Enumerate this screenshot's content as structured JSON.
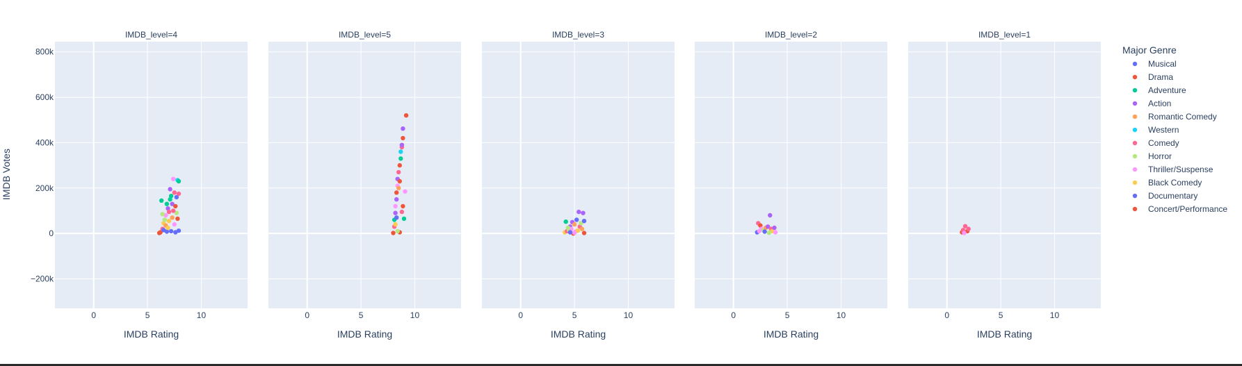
{
  "chart_data": {
    "type": "scatter",
    "facet_field": "IMDB_level",
    "xlabel": "IMDB Rating",
    "ylabel": "IMDB Votes",
    "xlim": [
      -3.6,
      14.3
    ],
    "ylim": [
      -330000,
      845000
    ],
    "xticks": [
      0,
      5,
      10
    ],
    "xtick_labels": [
      "0",
      "5",
      "10"
    ],
    "yticks": [
      -200000,
      0,
      200000,
      400000,
      600000,
      800000
    ],
    "ytick_labels": [
      "−200k",
      "0",
      "200k",
      "400k",
      "600k",
      "800k"
    ],
    "grid": true,
    "legend": {
      "title": "Major Genre",
      "placement": "right",
      "entries": [
        {
          "name": "Musical",
          "color": "#636efa"
        },
        {
          "name": "Drama",
          "color": "#ef553b"
        },
        {
          "name": "Adventure",
          "color": "#00cc96"
        },
        {
          "name": "Action",
          "color": "#ab63fa"
        },
        {
          "name": "Romantic Comedy",
          "color": "#ffa15a"
        },
        {
          "name": "Western",
          "color": "#19d3f3"
        },
        {
          "name": "Comedy",
          "color": "#ff6692"
        },
        {
          "name": "Horror",
          "color": "#b6e880"
        },
        {
          "name": "Thriller/Suspense",
          "color": "#ff97ff"
        },
        {
          "name": "Black Comedy",
          "color": "#fecb52"
        },
        {
          "name": "Documentary",
          "color": "#636efa"
        },
        {
          "name": "Concert/Performance",
          "color": "#ef553b"
        }
      ]
    },
    "facets": [
      {
        "title": "IMDB_level=4",
        "points": [
          {
            "x": 6.2,
            "y": 5000,
            "g": "Drama"
          },
          {
            "x": 6.4,
            "y": 20000,
            "g": "Comedy"
          },
          {
            "x": 6.5,
            "y": 45000,
            "g": "Black Comedy"
          },
          {
            "x": 6.6,
            "y": 60000,
            "g": "Horror"
          },
          {
            "x": 6.7,
            "y": 80000,
            "g": "Thriller/Suspense"
          },
          {
            "x": 6.8,
            "y": 130000,
            "g": "Adventure"
          },
          {
            "x": 6.3,
            "y": 145000,
            "g": "Adventure"
          },
          {
            "x": 6.9,
            "y": 110000,
            "g": "Action"
          },
          {
            "x": 7.0,
            "y": 95000,
            "g": "Comedy"
          },
          {
            "x": 7.1,
            "y": 150000,
            "g": "Adventure"
          },
          {
            "x": 7.2,
            "y": 165000,
            "g": "Adventure"
          },
          {
            "x": 7.3,
            "y": 130000,
            "g": "Action"
          },
          {
            "x": 7.4,
            "y": 240000,
            "g": "Thriller/Suspense"
          },
          {
            "x": 7.5,
            "y": 180000,
            "g": "Comedy"
          },
          {
            "x": 7.6,
            "y": 120000,
            "g": "Drama"
          },
          {
            "x": 7.7,
            "y": 160000,
            "g": "Musical"
          },
          {
            "x": 7.8,
            "y": 235000,
            "g": "Western"
          },
          {
            "x": 7.9,
            "y": 230000,
            "g": "Adventure"
          },
          {
            "x": 7.9,
            "y": 175000,
            "g": "Comedy"
          },
          {
            "x": 7.1,
            "y": 195000,
            "g": "Action"
          },
          {
            "x": 6.5,
            "y": 15000,
            "g": "Documentary"
          },
          {
            "x": 6.8,
            "y": 8000,
            "g": "Musical"
          },
          {
            "x": 7.2,
            "y": 10000,
            "g": "Documentary"
          },
          {
            "x": 7.6,
            "y": 5000,
            "g": "Musical"
          },
          {
            "x": 7.9,
            "y": 12000,
            "g": "Documentary"
          },
          {
            "x": 6.7,
            "y": 35000,
            "g": "Romantic Comedy"
          },
          {
            "x": 7.0,
            "y": 55000,
            "g": "Black Comedy"
          },
          {
            "x": 7.3,
            "y": 70000,
            "g": "Romantic Comedy"
          },
          {
            "x": 7.7,
            "y": 90000,
            "g": "Horror"
          },
          {
            "x": 6.4,
            "y": 85000,
            "g": "Horror"
          },
          {
            "x": 7.5,
            "y": 40000,
            "g": "Thriller/Suspense"
          },
          {
            "x": 7.8,
            "y": 65000,
            "g": "Drama"
          },
          {
            "x": 6.9,
            "y": 25000,
            "g": "Black Comedy"
          },
          {
            "x": 7.4,
            "y": 100000,
            "g": "Comedy"
          },
          {
            "x": 6.1,
            "y": 2000,
            "g": "Drama"
          }
        ]
      },
      {
        "title": "IMDB_level=5",
        "points": [
          {
            "x": 8.0,
            "y": 2000,
            "g": "Drama"
          },
          {
            "x": 8.1,
            "y": 30000,
            "g": "Comedy"
          },
          {
            "x": 8.1,
            "y": 60000,
            "g": "Adventure"
          },
          {
            "x": 8.2,
            "y": 90000,
            "g": "Action"
          },
          {
            "x": 8.2,
            "y": 120000,
            "g": "Thriller/Suspense"
          },
          {
            "x": 8.3,
            "y": 150000,
            "g": "Action"
          },
          {
            "x": 8.3,
            "y": 180000,
            "g": "Drama"
          },
          {
            "x": 8.4,
            "y": 210000,
            "g": "Thriller/Suspense"
          },
          {
            "x": 8.4,
            "y": 240000,
            "g": "Action"
          },
          {
            "x": 8.5,
            "y": 270000,
            "g": "Comedy"
          },
          {
            "x": 8.5,
            "y": 200000,
            "g": "Romantic Comedy"
          },
          {
            "x": 8.6,
            "y": 230000,
            "g": "Drama"
          },
          {
            "x": 8.6,
            "y": 300000,
            "g": "Drama"
          },
          {
            "x": 8.7,
            "y": 330000,
            "g": "Adventure"
          },
          {
            "x": 8.7,
            "y": 360000,
            "g": "Western"
          },
          {
            "x": 8.8,
            "y": 380000,
            "g": "Comedy"
          },
          {
            "x": 8.9,
            "y": 420000,
            "g": "Drama"
          },
          {
            "x": 8.9,
            "y": 462000,
            "g": "Action"
          },
          {
            "x": 9.2,
            "y": 520000,
            "g": "Drama"
          },
          {
            "x": 8.8,
            "y": 390000,
            "g": "Action"
          },
          {
            "x": 8.6,
            "y": 5000,
            "g": "Drama"
          },
          {
            "x": 8.4,
            "y": 10000,
            "g": "Horror"
          },
          {
            "x": 8.2,
            "y": 40000,
            "g": "Black Comedy"
          },
          {
            "x": 9.0,
            "y": 65000,
            "g": "Adventure"
          },
          {
            "x": 9.1,
            "y": 185000,
            "g": "Thriller/Suspense"
          },
          {
            "x": 8.9,
            "y": 120000,
            "g": "Drama"
          },
          {
            "x": 8.8,
            "y": 95000,
            "g": "Comedy"
          },
          {
            "x": 8.3,
            "y": 70000,
            "g": "Documentary"
          }
        ]
      },
      {
        "title": "IMDB_level=3",
        "points": [
          {
            "x": 4.1,
            "y": 5000,
            "g": "Black Comedy"
          },
          {
            "x": 4.3,
            "y": 10000,
            "g": "Comedy"
          },
          {
            "x": 4.2,
            "y": 52000,
            "g": "Adventure"
          },
          {
            "x": 4.5,
            "y": 15000,
            "g": "Horror"
          },
          {
            "x": 4.6,
            "y": 30000,
            "g": "Action"
          },
          {
            "x": 4.7,
            "y": 20000,
            "g": "Thriller/Suspense"
          },
          {
            "x": 4.8,
            "y": 50000,
            "g": "Action"
          },
          {
            "x": 4.9,
            "y": 0,
            "g": "Drama"
          },
          {
            "x": 5.0,
            "y": 40000,
            "g": "Romantic Comedy"
          },
          {
            "x": 5.2,
            "y": 60000,
            "g": "Musical"
          },
          {
            "x": 5.4,
            "y": 95000,
            "g": "Action"
          },
          {
            "x": 5.5,
            "y": 30000,
            "g": "Comedy"
          },
          {
            "x": 5.6,
            "y": 45000,
            "g": "Horror"
          },
          {
            "x": 5.8,
            "y": 90000,
            "g": "Action"
          },
          {
            "x": 5.9,
            "y": 55000,
            "g": "Musical"
          },
          {
            "x": 5.9,
            "y": 2000,
            "g": "Drama"
          },
          {
            "x": 4.4,
            "y": 25000,
            "g": "Horror"
          },
          {
            "x": 5.1,
            "y": 8000,
            "g": "Thriller/Suspense"
          },
          {
            "x": 5.3,
            "y": 12000,
            "g": "Black Comedy"
          },
          {
            "x": 5.7,
            "y": 20000,
            "g": "Romantic Comedy"
          },
          {
            "x": 4.6,
            "y": 5000,
            "g": "Documentary"
          },
          {
            "x": 5.0,
            "y": 3000,
            "g": "Thriller/Suspense"
          }
        ]
      },
      {
        "title": "IMDB_level=2",
        "points": [
          {
            "x": 2.2,
            "y": 5000,
            "g": "Documentary"
          },
          {
            "x": 2.3,
            "y": 45000,
            "g": "Comedy"
          },
          {
            "x": 2.5,
            "y": 35000,
            "g": "Drama"
          },
          {
            "x": 2.6,
            "y": 20000,
            "g": "Thriller/Suspense"
          },
          {
            "x": 2.8,
            "y": 15000,
            "g": "Horror"
          },
          {
            "x": 3.0,
            "y": 25000,
            "g": "Romantic Comedy"
          },
          {
            "x": 3.2,
            "y": 30000,
            "g": "Action"
          },
          {
            "x": 3.4,
            "y": 80000,
            "g": "Action"
          },
          {
            "x": 3.5,
            "y": 20000,
            "g": "Comedy"
          },
          {
            "x": 3.6,
            "y": 10000,
            "g": "Black Comedy"
          },
          {
            "x": 3.8,
            "y": 25000,
            "g": "Action"
          },
          {
            "x": 3.9,
            "y": 5000,
            "g": "Thriller/Suspense"
          },
          {
            "x": 2.9,
            "y": 8000,
            "g": "Musical"
          },
          {
            "x": 3.3,
            "y": 3000,
            "g": "Horror"
          },
          {
            "x": 2.4,
            "y": 10000,
            "g": "Thriller/Suspense"
          }
        ]
      },
      {
        "title": "IMDB_level=1",
        "points": [
          {
            "x": 1.4,
            "y": 5000,
            "g": "Drama"
          },
          {
            "x": 1.5,
            "y": 15000,
            "g": "Comedy"
          },
          {
            "x": 1.7,
            "y": 32000,
            "g": "Comedy"
          },
          {
            "x": 1.9,
            "y": 10000,
            "g": "Drama"
          },
          {
            "x": 2.0,
            "y": 20000,
            "g": "Comedy"
          },
          {
            "x": 1.6,
            "y": 2000,
            "g": "Thriller/Suspense"
          }
        ]
      }
    ]
  }
}
